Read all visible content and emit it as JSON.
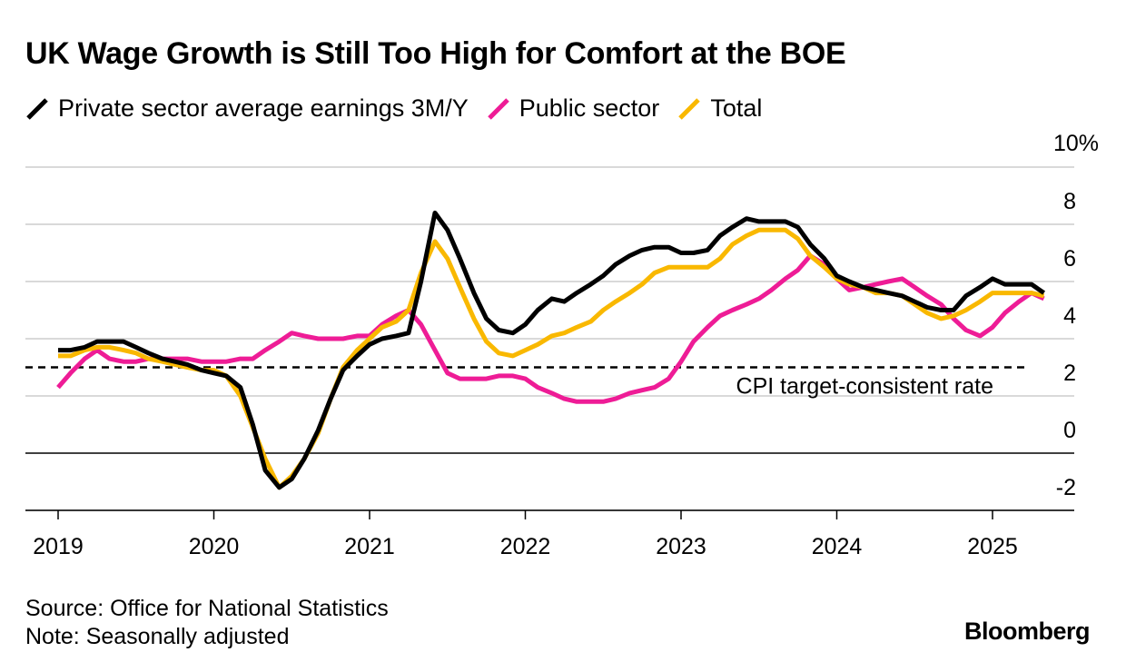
{
  "title": "UK Wage Growth is Still Too High for Comfort at the BOE",
  "legend": [
    {
      "label": "Private sector average earnings 3M/Y",
      "color": "#000000"
    },
    {
      "label": "Public sector",
      "color": "#ee1c96"
    },
    {
      "label": "Total",
      "color": "#f9b800"
    }
  ],
  "footer": {
    "source": "Source: Office for National Statistics",
    "note": "Note: Seasonally adjusted"
  },
  "brand": "Bloomberg",
  "chart_data": {
    "type": "line",
    "title": "UK Wage Growth is Still Too High for Comfort at the BOE",
    "y_unit_label": "10%",
    "ylim": [
      -2,
      10
    ],
    "xlim": [
      2019,
      2025.75
    ],
    "y_ticks": [
      {
        "value": 8,
        "label": "8"
      },
      {
        "value": 6,
        "label": "6"
      },
      {
        "value": 4,
        "label": "4"
      },
      {
        "value": 2,
        "label": "2"
      },
      {
        "value": 0,
        "label": "0"
      },
      {
        "value": -2,
        "label": "-2"
      }
    ],
    "x_ticks": [
      {
        "value": 2019,
        "label": "2019"
      },
      {
        "value": 2020,
        "label": "2020"
      },
      {
        "value": 2021,
        "label": "2021"
      },
      {
        "value": 2022,
        "label": "2022"
      },
      {
        "value": 2023,
        "label": "2023"
      },
      {
        "value": 2024,
        "label": "2024"
      },
      {
        "value": 2025,
        "label": "2025"
      }
    ],
    "grid": "horizontal",
    "legend_position": "top-left",
    "reference_line": {
      "value": 3.0,
      "label": "CPI target-consistent rate",
      "style": "dashed"
    },
    "series": [
      {
        "name": "Public sector",
        "color": "#ee1c96",
        "points": [
          [
            2019.0,
            2.3
          ],
          [
            2019.08,
            2.8
          ],
          [
            2019.17,
            3.3
          ],
          [
            2019.25,
            3.6
          ],
          [
            2019.33,
            3.3
          ],
          [
            2019.42,
            3.2
          ],
          [
            2019.5,
            3.2
          ],
          [
            2019.58,
            3.3
          ],
          [
            2019.67,
            3.3
          ],
          [
            2019.75,
            3.3
          ],
          [
            2019.83,
            3.3
          ],
          [
            2019.92,
            3.2
          ],
          [
            2020.0,
            3.2
          ],
          [
            2020.08,
            3.2
          ],
          [
            2020.17,
            3.3
          ],
          [
            2020.25,
            3.3
          ],
          [
            2020.33,
            3.6
          ],
          [
            2020.42,
            3.9
          ],
          [
            2020.5,
            4.2
          ],
          [
            2020.58,
            4.1
          ],
          [
            2020.67,
            4.0
          ],
          [
            2020.75,
            4.0
          ],
          [
            2020.83,
            4.0
          ],
          [
            2020.92,
            4.1
          ],
          [
            2021.0,
            4.1
          ],
          [
            2021.08,
            4.5
          ],
          [
            2021.17,
            4.8
          ],
          [
            2021.25,
            5.0
          ],
          [
            2021.33,
            4.5
          ],
          [
            2021.42,
            3.6
          ],
          [
            2021.5,
            2.8
          ],
          [
            2021.58,
            2.6
          ],
          [
            2021.67,
            2.6
          ],
          [
            2021.75,
            2.6
          ],
          [
            2021.83,
            2.7
          ],
          [
            2021.92,
            2.7
          ],
          [
            2022.0,
            2.6
          ],
          [
            2022.08,
            2.3
          ],
          [
            2022.17,
            2.1
          ],
          [
            2022.25,
            1.9
          ],
          [
            2022.33,
            1.8
          ],
          [
            2022.42,
            1.8
          ],
          [
            2022.5,
            1.8
          ],
          [
            2022.58,
            1.9
          ],
          [
            2022.67,
            2.1
          ],
          [
            2022.75,
            2.2
          ],
          [
            2022.83,
            2.3
          ],
          [
            2022.92,
            2.6
          ],
          [
            2023.0,
            3.2
          ],
          [
            2023.08,
            3.9
          ],
          [
            2023.17,
            4.4
          ],
          [
            2023.25,
            4.8
          ],
          [
            2023.33,
            5.0
          ],
          [
            2023.42,
            5.2
          ],
          [
            2023.5,
            5.4
          ],
          [
            2023.58,
            5.7
          ],
          [
            2023.67,
            6.1
          ],
          [
            2023.75,
            6.4
          ],
          [
            2023.83,
            6.9
          ],
          [
            2023.92,
            6.6
          ],
          [
            2024.0,
            6.1
          ],
          [
            2024.08,
            5.7
          ],
          [
            2024.17,
            5.8
          ],
          [
            2024.25,
            5.9
          ],
          [
            2024.33,
            6.0
          ],
          [
            2024.42,
            6.1
          ],
          [
            2024.5,
            5.8
          ],
          [
            2024.58,
            5.5
          ],
          [
            2024.67,
            5.2
          ],
          [
            2024.75,
            4.7
          ],
          [
            2024.83,
            4.3
          ],
          [
            2024.92,
            4.1
          ],
          [
            2025.0,
            4.4
          ],
          [
            2025.08,
            4.9
          ],
          [
            2025.17,
            5.3
          ],
          [
            2025.25,
            5.6
          ],
          [
            2025.33,
            5.4
          ]
        ]
      },
      {
        "name": "Total",
        "color": "#f9b800",
        "points": [
          [
            2019.0,
            3.4
          ],
          [
            2019.08,
            3.4
          ],
          [
            2019.17,
            3.6
          ],
          [
            2019.25,
            3.7
          ],
          [
            2019.33,
            3.7
          ],
          [
            2019.42,
            3.6
          ],
          [
            2019.5,
            3.5
          ],
          [
            2019.58,
            3.3
          ],
          [
            2019.67,
            3.2
          ],
          [
            2019.75,
            3.1
          ],
          [
            2019.83,
            3.0
          ],
          [
            2019.92,
            2.9
          ],
          [
            2020.0,
            2.9
          ],
          [
            2020.08,
            2.7
          ],
          [
            2020.17,
            2.0
          ],
          [
            2020.25,
            0.9
          ],
          [
            2020.33,
            -0.2
          ],
          [
            2020.42,
            -1.2
          ],
          [
            2020.5,
            -0.8
          ],
          [
            2020.58,
            -0.2
          ],
          [
            2020.67,
            0.7
          ],
          [
            2020.75,
            1.9
          ],
          [
            2020.83,
            3.0
          ],
          [
            2020.92,
            3.6
          ],
          [
            2021.0,
            4.0
          ],
          [
            2021.08,
            4.4
          ],
          [
            2021.17,
            4.6
          ],
          [
            2021.25,
            5.0
          ],
          [
            2021.33,
            6.3
          ],
          [
            2021.42,
            7.4
          ],
          [
            2021.5,
            6.8
          ],
          [
            2021.58,
            5.8
          ],
          [
            2021.67,
            4.7
          ],
          [
            2021.75,
            3.9
          ],
          [
            2021.83,
            3.5
          ],
          [
            2021.92,
            3.4
          ],
          [
            2022.0,
            3.6
          ],
          [
            2022.08,
            3.8
          ],
          [
            2022.17,
            4.1
          ],
          [
            2022.25,
            4.2
          ],
          [
            2022.33,
            4.4
          ],
          [
            2022.42,
            4.6
          ],
          [
            2022.5,
            5.0
          ],
          [
            2022.58,
            5.3
          ],
          [
            2022.67,
            5.6
          ],
          [
            2022.75,
            5.9
          ],
          [
            2022.83,
            6.3
          ],
          [
            2022.92,
            6.5
          ],
          [
            2023.0,
            6.5
          ],
          [
            2023.08,
            6.5
          ],
          [
            2023.17,
            6.5
          ],
          [
            2023.25,
            6.8
          ],
          [
            2023.33,
            7.3
          ],
          [
            2023.42,
            7.6
          ],
          [
            2023.5,
            7.8
          ],
          [
            2023.58,
            7.8
          ],
          [
            2023.67,
            7.8
          ],
          [
            2023.75,
            7.5
          ],
          [
            2023.83,
            6.9
          ],
          [
            2023.92,
            6.5
          ],
          [
            2024.0,
            6.1
          ],
          [
            2024.08,
            5.9
          ],
          [
            2024.17,
            5.8
          ],
          [
            2024.25,
            5.6
          ],
          [
            2024.33,
            5.6
          ],
          [
            2024.42,
            5.5
          ],
          [
            2024.5,
            5.2
          ],
          [
            2024.58,
            4.9
          ],
          [
            2024.67,
            4.7
          ],
          [
            2024.75,
            4.8
          ],
          [
            2024.83,
            5.0
          ],
          [
            2024.92,
            5.3
          ],
          [
            2025.0,
            5.6
          ],
          [
            2025.08,
            5.6
          ],
          [
            2025.17,
            5.6
          ],
          [
            2025.25,
            5.6
          ],
          [
            2025.33,
            5.5
          ]
        ]
      },
      {
        "name": "Private sector average earnings 3M/Y",
        "color": "#000000",
        "points": [
          [
            2019.0,
            3.6
          ],
          [
            2019.08,
            3.6
          ],
          [
            2019.17,
            3.7
          ],
          [
            2019.25,
            3.9
          ],
          [
            2019.33,
            3.9
          ],
          [
            2019.42,
            3.9
          ],
          [
            2019.5,
            3.7
          ],
          [
            2019.58,
            3.5
          ],
          [
            2019.67,
            3.3
          ],
          [
            2019.75,
            3.2
          ],
          [
            2019.83,
            3.1
          ],
          [
            2019.92,
            2.9
          ],
          [
            2020.0,
            2.8
          ],
          [
            2020.08,
            2.7
          ],
          [
            2020.17,
            2.3
          ],
          [
            2020.25,
            1.0
          ],
          [
            2020.33,
            -0.6
          ],
          [
            2020.42,
            -1.2
          ],
          [
            2020.5,
            -0.9
          ],
          [
            2020.58,
            -0.2
          ],
          [
            2020.67,
            0.8
          ],
          [
            2020.75,
            1.9
          ],
          [
            2020.83,
            2.9
          ],
          [
            2020.92,
            3.4
          ],
          [
            2021.0,
            3.8
          ],
          [
            2021.08,
            4.0
          ],
          [
            2021.17,
            4.1
          ],
          [
            2021.25,
            4.2
          ],
          [
            2021.33,
            6.0
          ],
          [
            2021.42,
            8.4
          ],
          [
            2021.5,
            7.8
          ],
          [
            2021.58,
            6.8
          ],
          [
            2021.67,
            5.6
          ],
          [
            2021.75,
            4.7
          ],
          [
            2021.83,
            4.3
          ],
          [
            2021.92,
            4.2
          ],
          [
            2022.0,
            4.5
          ],
          [
            2022.08,
            5.0
          ],
          [
            2022.17,
            5.4
          ],
          [
            2022.25,
            5.3
          ],
          [
            2022.33,
            5.6
          ],
          [
            2022.42,
            5.9
          ],
          [
            2022.5,
            6.2
          ],
          [
            2022.58,
            6.6
          ],
          [
            2022.67,
            6.9
          ],
          [
            2022.75,
            7.1
          ],
          [
            2022.83,
            7.2
          ],
          [
            2022.92,
            7.2
          ],
          [
            2023.0,
            7.0
          ],
          [
            2023.08,
            7.0
          ],
          [
            2023.17,
            7.1
          ],
          [
            2023.25,
            7.6
          ],
          [
            2023.33,
            7.9
          ],
          [
            2023.42,
            8.2
          ],
          [
            2023.5,
            8.1
          ],
          [
            2023.58,
            8.1
          ],
          [
            2023.67,
            8.1
          ],
          [
            2023.75,
            7.9
          ],
          [
            2023.83,
            7.3
          ],
          [
            2023.92,
            6.8
          ],
          [
            2024.0,
            6.2
          ],
          [
            2024.08,
            6.0
          ],
          [
            2024.17,
            5.8
          ],
          [
            2024.25,
            5.7
          ],
          [
            2024.33,
            5.6
          ],
          [
            2024.42,
            5.5
          ],
          [
            2024.5,
            5.3
          ],
          [
            2024.58,
            5.1
          ],
          [
            2024.67,
            5.0
          ],
          [
            2024.75,
            5.0
          ],
          [
            2024.83,
            5.5
          ],
          [
            2024.92,
            5.8
          ],
          [
            2025.0,
            6.1
          ],
          [
            2025.08,
            5.9
          ],
          [
            2025.17,
            5.9
          ],
          [
            2025.25,
            5.9
          ],
          [
            2025.33,
            5.6
          ]
        ]
      }
    ]
  }
}
